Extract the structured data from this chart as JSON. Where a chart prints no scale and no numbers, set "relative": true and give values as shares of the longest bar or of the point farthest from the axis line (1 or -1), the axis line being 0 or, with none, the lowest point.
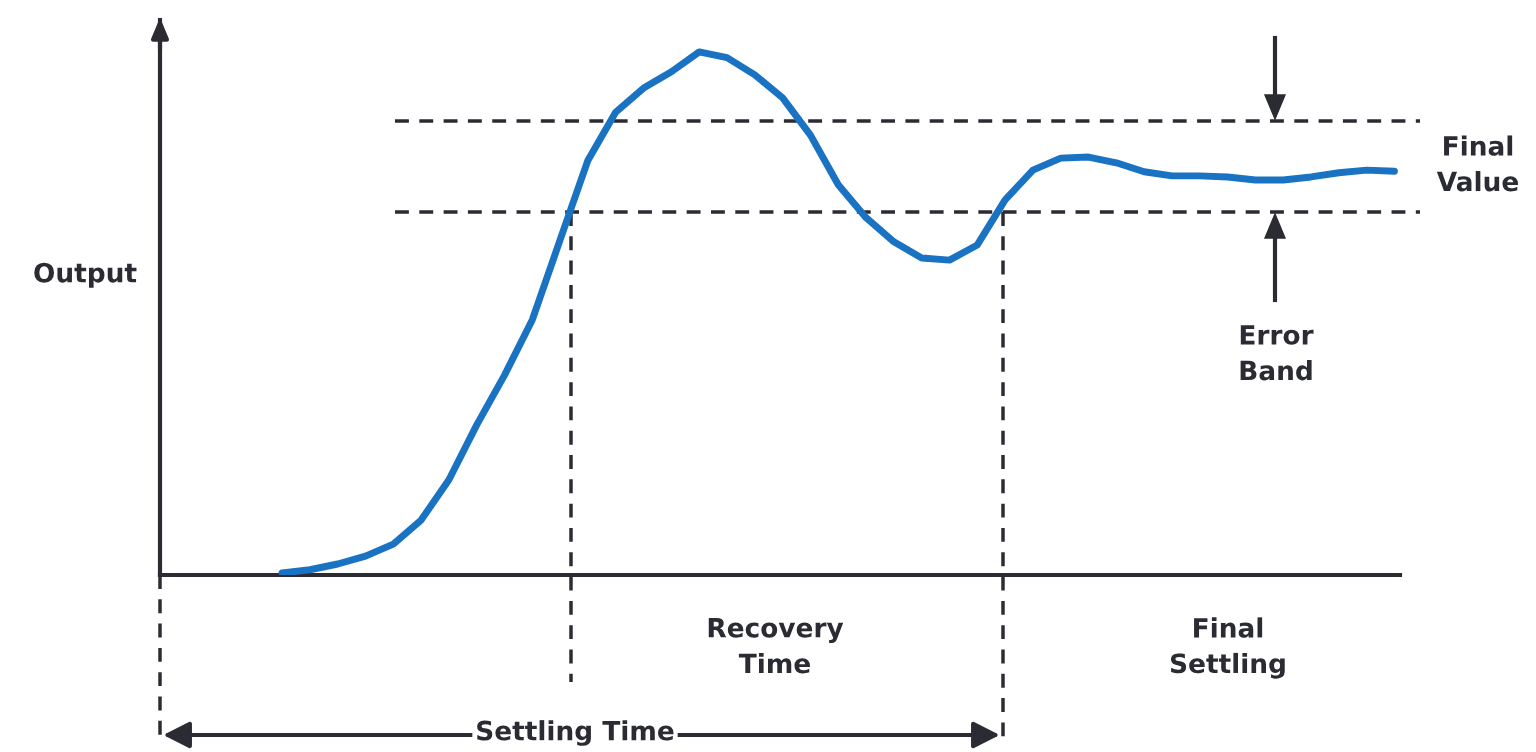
{
  "chart_data": {
    "type": "line",
    "relative": true,
    "ylabel": "Output",
    "marker": "none",
    "line_style": "solid",
    "categories": [
      null,
      null,
      null,
      null,
      null,
      null,
      null,
      null,
      null,
      null,
      null,
      null,
      null,
      null,
      null,
      null,
      null,
      null,
      null,
      null,
      null,
      null,
      null,
      null,
      null,
      null,
      null,
      null,
      null,
      null,
      null,
      null,
      null,
      null,
      null,
      null,
      null,
      null,
      null,
      null,
      null
    ],
    "series": [
      {
        "color": "#1a73c2",
        "values": [
          0.004,
          0.01,
          0.021,
          0.036,
          0.059,
          0.105,
          0.182,
          0.287,
          0.382,
          0.488,
          0.641,
          0.793,
          0.885,
          0.931,
          0.962,
          1.0,
          0.989,
          0.956,
          0.912,
          0.841,
          0.746,
          0.683,
          0.637,
          0.606,
          0.602,
          0.631,
          0.717,
          0.774,
          0.797,
          0.799,
          0.788,
          0.771,
          0.763,
          0.763,
          0.761,
          0.755,
          0.755,
          0.761,
          0.769,
          0.774,
          0.772
        ]
      }
    ],
    "ref_lines": [
      {
        "axis": "y",
        "value": 0.868,
        "color": "#2b2b33",
        "line_style": "dashed"
      },
      {
        "axis": "y",
        "value": 0.694,
        "color": "#2b2b33",
        "line_style": "dashed"
      }
    ],
    "annotations": [
      "Final\nValue",
      "Error\nBand",
      "Recovery\nTime",
      "Final\nSettling",
      "Settling Time"
    ]
  }
}
